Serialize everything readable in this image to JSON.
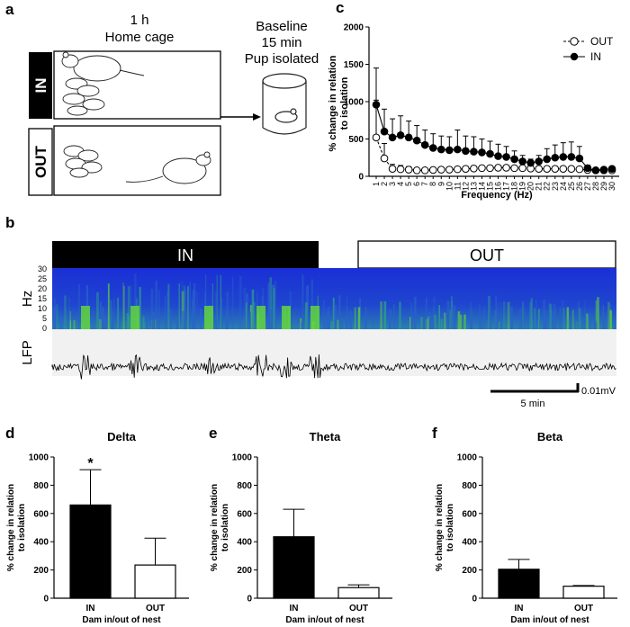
{
  "panel_a": {
    "letter": "a",
    "home_cage_time": "1 h",
    "home_cage_label": "Home cage",
    "baseline_line1": "Baseline",
    "baseline_line2": "15 min",
    "baseline_line3": "Pup isolated",
    "in_label": "IN",
    "out_label": "OUT"
  },
  "panel_b": {
    "letter": "b",
    "in_label": "IN",
    "out_label": "OUT",
    "hz_label": "Hz",
    "lfp_label": "LFP",
    "hz_ticks": [
      "30",
      "25",
      "20",
      "15",
      "10",
      "5",
      "0"
    ],
    "time_scale": "5 min",
    "voltage_scale": "0.01mV"
  },
  "panel_c_letter": "c",
  "panel_d_letter": "d",
  "panel_e_letter": "e",
  "panel_f_letter": "f",
  "chart_data": [
    {
      "id": "c",
      "type": "line",
      "title": "",
      "xlabel": "Frequency (Hz)",
      "ylabel": "% change in relation to isolation",
      "ylim": [
        0,
        2000
      ],
      "yticks": [
        0,
        500,
        1000,
        1500,
        2000
      ],
      "x": [
        1,
        2,
        3,
        4,
        5,
        6,
        7,
        8,
        9,
        10,
        11,
        12,
        13,
        14,
        15,
        16,
        17,
        18,
        19,
        20,
        21,
        22,
        23,
        24,
        25,
        26,
        27,
        28,
        29,
        30
      ],
      "series": [
        {
          "name": "OUT",
          "values": [
            520,
            240,
            100,
            95,
            90,
            80,
            80,
            85,
            90,
            90,
            95,
            100,
            105,
            110,
            110,
            115,
            115,
            110,
            110,
            105,
            100,
            100,
            100,
            100,
            100,
            95,
            85,
            80,
            80,
            80
          ],
          "err": [
            930,
            200,
            60,
            50,
            40,
            30,
            30,
            30,
            30,
            30,
            30,
            30,
            30,
            30,
            30,
            30,
            30,
            30,
            30,
            30,
            30,
            30,
            30,
            30,
            30,
            30,
            30,
            30,
            30,
            30
          ]
        },
        {
          "name": "IN",
          "values": [
            960,
            600,
            520,
            550,
            520,
            480,
            420,
            380,
            360,
            350,
            360,
            340,
            330,
            320,
            300,
            270,
            260,
            230,
            200,
            180,
            200,
            230,
            250,
            260,
            260,
            240,
            110,
            80,
            90,
            100
          ],
          "err": [
            60,
            300,
            250,
            260,
            220,
            200,
            200,
            190,
            180,
            180,
            260,
            200,
            200,
            180,
            170,
            160,
            140,
            110,
            80,
            50,
            80,
            140,
            170,
            190,
            200,
            160,
            40,
            30,
            30,
            30
          ]
        }
      ],
      "legend": "top-right"
    },
    {
      "id": "d",
      "type": "bar",
      "title": "Delta",
      "xlabel": "Dam in/out of nest",
      "ylabel": "% change in relation to isolation",
      "ylim": [
        0,
        1000
      ],
      "yticks": [
        0,
        200,
        400,
        600,
        800,
        1000
      ],
      "categories": [
        "IN",
        "OUT"
      ],
      "values": [
        660,
        235
      ],
      "err": [
        250,
        190
      ],
      "annotation": "*"
    },
    {
      "id": "e",
      "type": "bar",
      "title": "Theta",
      "xlabel": "Dam in/out of nest",
      "ylabel": "% change in relation to isolation",
      "ylim": [
        0,
        1000
      ],
      "yticks": [
        0,
        200,
        400,
        600,
        800,
        1000
      ],
      "categories": [
        "IN",
        "OUT"
      ],
      "values": [
        435,
        75
      ],
      "err": [
        195,
        20
      ]
    },
    {
      "id": "f",
      "type": "bar",
      "title": "Beta",
      "xlabel": "Dam in/out of nest",
      "ylabel": "% change in relation to isolation",
      "ylim": [
        0,
        1000
      ],
      "yticks": [
        0,
        200,
        400,
        600,
        800,
        1000
      ],
      "categories": [
        "IN",
        "OUT"
      ],
      "values": [
        205,
        85
      ],
      "err": [
        70,
        5
      ]
    }
  ]
}
